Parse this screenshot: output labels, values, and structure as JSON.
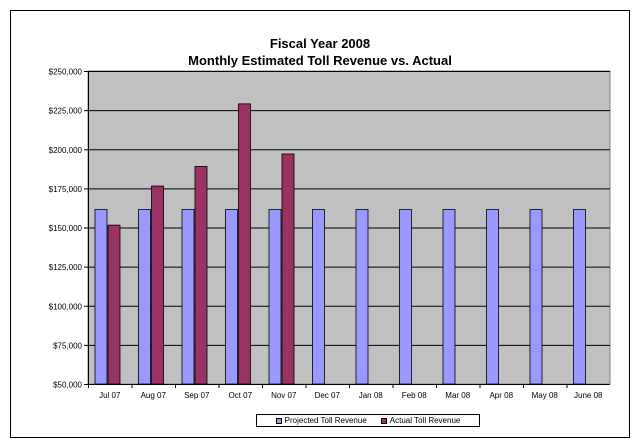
{
  "chart_data": {
    "type": "bar",
    "title": "Fiscal Year 2008",
    "subtitle": "Monthly Estimated Toll Revenue vs. Actual",
    "categories": [
      "Jul 07",
      "Aug 07",
      "Sep 07",
      "Oct 07",
      "Nov 07",
      "Dec 07",
      "Jan 08",
      "Feb 08",
      "Mar 08",
      "Apr 08",
      "May 08",
      "June 08"
    ],
    "series": [
      {
        "name": "Projected Toll Revenue",
        "color": "#9999ff",
        "values": [
          161500,
          161500,
          161500,
          161500,
          161500,
          161500,
          161500,
          161500,
          161500,
          161500,
          161500,
          161500
        ]
      },
      {
        "name": "Actual Toll Revenue",
        "color": "#993366",
        "values": [
          151500,
          176500,
          189000,
          229000,
          197000,
          null,
          null,
          null,
          null,
          null,
          null,
          null
        ]
      }
    ],
    "ylim": [
      50000,
      250000
    ],
    "yticks": [
      50000,
      75000,
      100000,
      125000,
      150000,
      175000,
      200000,
      225000,
      250000
    ],
    "ytick_labels": [
      "$50,000",
      "$75,000",
      "$100,000",
      "$125,000",
      "$150,000",
      "$175,000",
      "$200,000",
      "$225,000",
      "$250,000"
    ],
    "xlabel": "",
    "ylabel": "",
    "grid": true,
    "legend_position": "bottom",
    "plot_background": "#c0c0c0"
  }
}
